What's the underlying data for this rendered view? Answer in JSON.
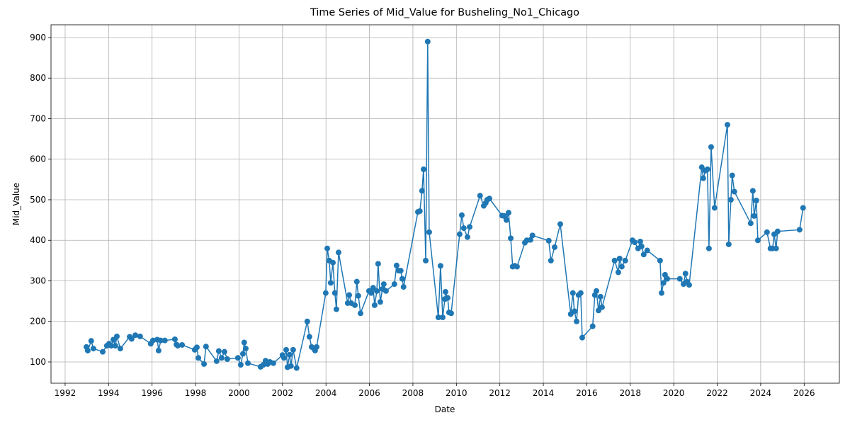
{
  "chart_data": {
    "type": "line",
    "title": "Time Series of Mid_Value for Busheling_No1_Chicago",
    "xlabel": "Date",
    "ylabel": "Mid_Value",
    "color": "#1f77b4",
    "grid": true,
    "markers": true,
    "xlim": [
      1991.35,
      2027.62
    ],
    "xticks": [
      1992,
      1994,
      1996,
      1998,
      2000,
      2002,
      2004,
      2006,
      2008,
      2010,
      2012,
      2014,
      2016,
      2018,
      2020,
      2022,
      2024,
      2026
    ],
    "ylim": [
      47.6,
      931.4
    ],
    "yticks": [
      100,
      200,
      300,
      400,
      500,
      600,
      700,
      800,
      900
    ],
    "x": [
      1992.98,
      1993.04,
      1993.2,
      1993.3,
      1993.73,
      1993.92,
      1994.02,
      1994.12,
      1994.22,
      1994.31,
      1994.38,
      1994.54,
      1994.97,
      1995.06,
      1995.23,
      1995.45,
      1995.94,
      1996.04,
      1996.24,
      1996.3,
      1996.4,
      1996.59,
      1997.05,
      1997.12,
      1997.18,
      1997.38,
      1997.96,
      1998.06,
      1998.13,
      1998.39,
      1998.48,
      1998.97,
      1999.07,
      1999.2,
      1999.33,
      1999.46,
      1999.95,
      2000.08,
      2000.18,
      2000.24,
      2000.31,
      2000.41,
      2000.99,
      2001.12,
      2001.22,
      2001.32,
      2001.42,
      2001.58,
      2002.0,
      2002.07,
      2002.17,
      2002.23,
      2002.33,
      2002.39,
      2002.49,
      2002.65,
      2003.14,
      2003.24,
      2003.34,
      2003.44,
      2003.5,
      2003.57,
      2003.99,
      2004.06,
      2004.15,
      2004.22,
      2004.32,
      2004.41,
      2004.48,
      2004.58,
      2005.0,
      2005.07,
      2005.16,
      2005.33,
      2005.42,
      2005.49,
      2005.59,
      2005.98,
      2006.08,
      2006.17,
      2006.24,
      2006.34,
      2006.4,
      2006.5,
      2006.6,
      2006.66,
      2006.76,
      2007.15,
      2007.25,
      2007.35,
      2007.44,
      2007.51,
      2007.57,
      2008.23,
      2008.32,
      2008.42,
      2008.49,
      2008.59,
      2008.68,
      2008.75,
      2009.17,
      2009.27,
      2009.37,
      2009.47,
      2009.5,
      2009.6,
      2009.66,
      2009.76,
      2010.15,
      2010.25,
      2010.34,
      2010.51,
      2010.61,
      2011.09,
      2011.26,
      2011.35,
      2011.42,
      2011.52,
      2012.1,
      2012.2,
      2012.3,
      2012.4,
      2012.5,
      2012.59,
      2012.69,
      2012.79,
      2013.15,
      2013.24,
      2013.41,
      2013.5,
      2014.25,
      2014.35,
      2014.52,
      2014.78,
      2015.26,
      2015.36,
      2015.43,
      2015.53,
      2015.62,
      2015.72,
      2015.79,
      2016.27,
      2016.37,
      2016.44,
      2016.54,
      2016.63,
      2016.7,
      2017.28,
      2017.45,
      2017.51,
      2017.61,
      2017.77,
      2018.1,
      2018.2,
      2018.36,
      2018.46,
      2018.52,
      2018.62,
      2018.78,
      2019.37,
      2019.44,
      2019.53,
      2019.6,
      2019.7,
      2020.28,
      2020.45,
      2020.54,
      2020.61,
      2020.71,
      2021.29,
      2021.36,
      2021.46,
      2021.55,
      2021.62,
      2021.72,
      2021.88,
      2022.47,
      2022.53,
      2022.63,
      2022.69,
      2022.79,
      2023.54,
      2023.64,
      2023.7,
      2023.8,
      2023.87,
      2024.29,
      2024.45,
      2024.55,
      2024.62,
      2024.71,
      2024.78,
      2025.79,
      2025.95
    ],
    "values": [
      137,
      128,
      152,
      133,
      125,
      140,
      145,
      140,
      155,
      140,
      163,
      133,
      162,
      157,
      166,
      163,
      145,
      153,
      155,
      128,
      153,
      153,
      156,
      143,
      140,
      142,
      130,
      136,
      110,
      95,
      138,
      102,
      127,
      110,
      125,
      107,
      110,
      93,
      120,
      148,
      133,
      97,
      88,
      93,
      103,
      95,
      100,
      97,
      117,
      110,
      130,
      87,
      118,
      90,
      130,
      85,
      200,
      162,
      137,
      133,
      128,
      137,
      270,
      380,
      350,
      295,
      345,
      270,
      230,
      370,
      245,
      265,
      245,
      240,
      298,
      263,
      220,
      275,
      270,
      283,
      240,
      275,
      342,
      248,
      280,
      292,
      275,
      292,
      338,
      325,
      325,
      305,
      285,
      470,
      472,
      522,
      575,
      350,
      890,
      420,
      210,
      337,
      210,
      255,
      273,
      258,
      222,
      220,
      415,
      462,
      430,
      408,
      433,
      510,
      485,
      492,
      500,
      503,
      461,
      460,
      450,
      468,
      405,
      335,
      337,
      335,
      394,
      400,
      401,
      412,
      399,
      350,
      383,
      440,
      218,
      270,
      225,
      200,
      265,
      270,
      160,
      188,
      265,
      275,
      227,
      261,
      235,
      350,
      321,
      355,
      335,
      350,
      400,
      395,
      380,
      397,
      385,
      365,
      375,
      350,
      270,
      295,
      315,
      305,
      305,
      292,
      318,
      298,
      290,
      580,
      553,
      572,
      575,
      380,
      630,
      480,
      685,
      390,
      500,
      560,
      520,
      442,
      522,
      460,
      498,
      400,
      420,
      380,
      380,
      415,
      380,
      422,
      426,
      480
    ]
  }
}
